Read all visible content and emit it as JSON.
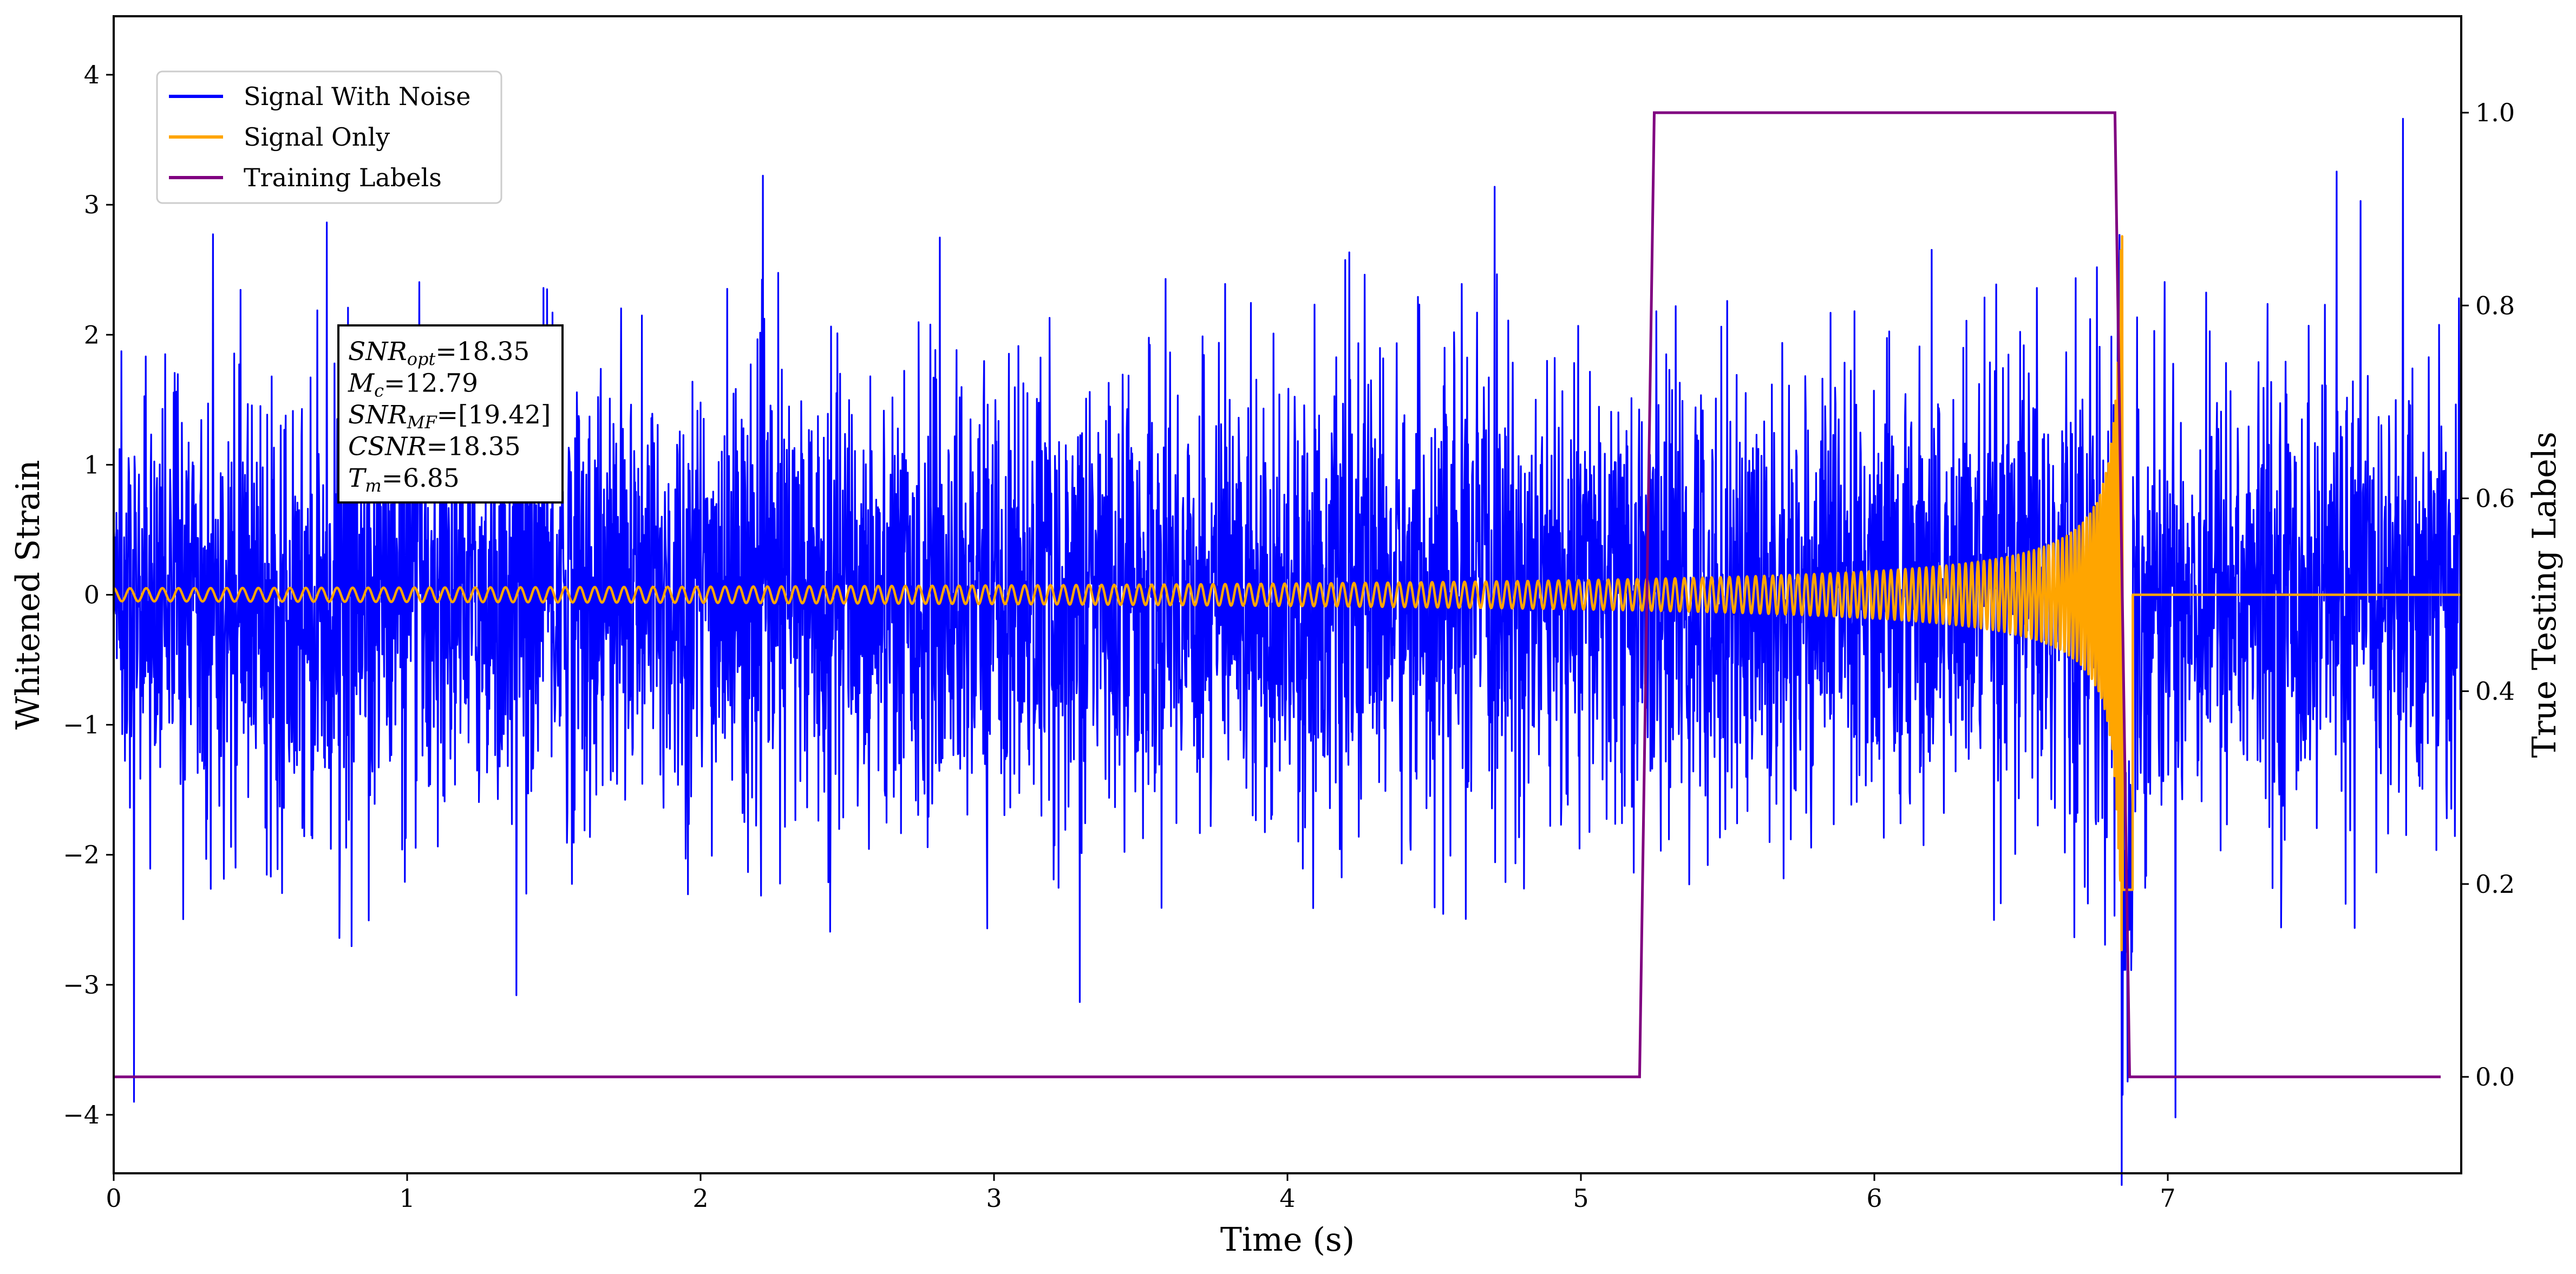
{
  "chart_data": {
    "type": "line",
    "xlabel": "Time (s)",
    "ylabel": "Whitened Strain",
    "ylabel_right": "True Testing Labels",
    "xlim": [
      0,
      8.0
    ],
    "ylim": [
      -4.45,
      4.45
    ],
    "ylim_right": [
      -0.1,
      1.1
    ],
    "x_ticks": [
      0,
      1,
      2,
      3,
      4,
      5,
      6,
      7
    ],
    "x_tick_labels": [
      "0",
      "1",
      "2",
      "3",
      "4",
      "5",
      "6",
      "7"
    ],
    "y_ticks": [
      -4,
      -3,
      -2,
      -1,
      0,
      1,
      2,
      3,
      4
    ],
    "y_tick_labels": [
      "−4",
      "−3",
      "−2",
      "−1",
      "0",
      "1",
      "2",
      "3",
      "4"
    ],
    "y_right_ticks": [
      0.0,
      0.2,
      0.4,
      0.6,
      0.8,
      1.0
    ],
    "y_right_tick_labels": [
      "0.0",
      "0.2",
      "0.4",
      "0.6",
      "0.8",
      "1.0"
    ],
    "grid": false,
    "legend_position": "upper-left",
    "series": [
      {
        "name": "Signal With Noise",
        "color": "#0000ff",
        "axis": "left",
        "description_values": {
          "noise_std": 0.85,
          "peaks_max": 4.02,
          "peaks_min": -4.02
        }
      },
      {
        "name": "Signal Only",
        "color": "#ffa500",
        "axis": "left",
        "description_values": {
          "start_amplitude": 0.05,
          "merger_time": 6.85,
          "peak_amplitude": 2.8,
          "end_time": 6.88
        }
      },
      {
        "name": "Training Labels",
        "color": "#800080",
        "axis": "right",
        "x": [
          0,
          5.2,
          5.25,
          6.82,
          6.87,
          7.93
        ],
        "values": [
          0,
          0,
          1,
          1,
          0,
          0
        ]
      }
    ],
    "annotation": {
      "lines": [
        {
          "main": "SNR",
          "sub": "opt",
          "value": "=18.35"
        },
        {
          "main": "M",
          "sub": "c",
          "value": "=12.79"
        },
        {
          "main": "SNR",
          "sub": "MF",
          "value": "=[19.42]"
        },
        {
          "main": "CSNR",
          "sub": "",
          "value": "=18.35"
        },
        {
          "main": "T",
          "sub": "m",
          "value": "=6.85"
        }
      ]
    }
  }
}
